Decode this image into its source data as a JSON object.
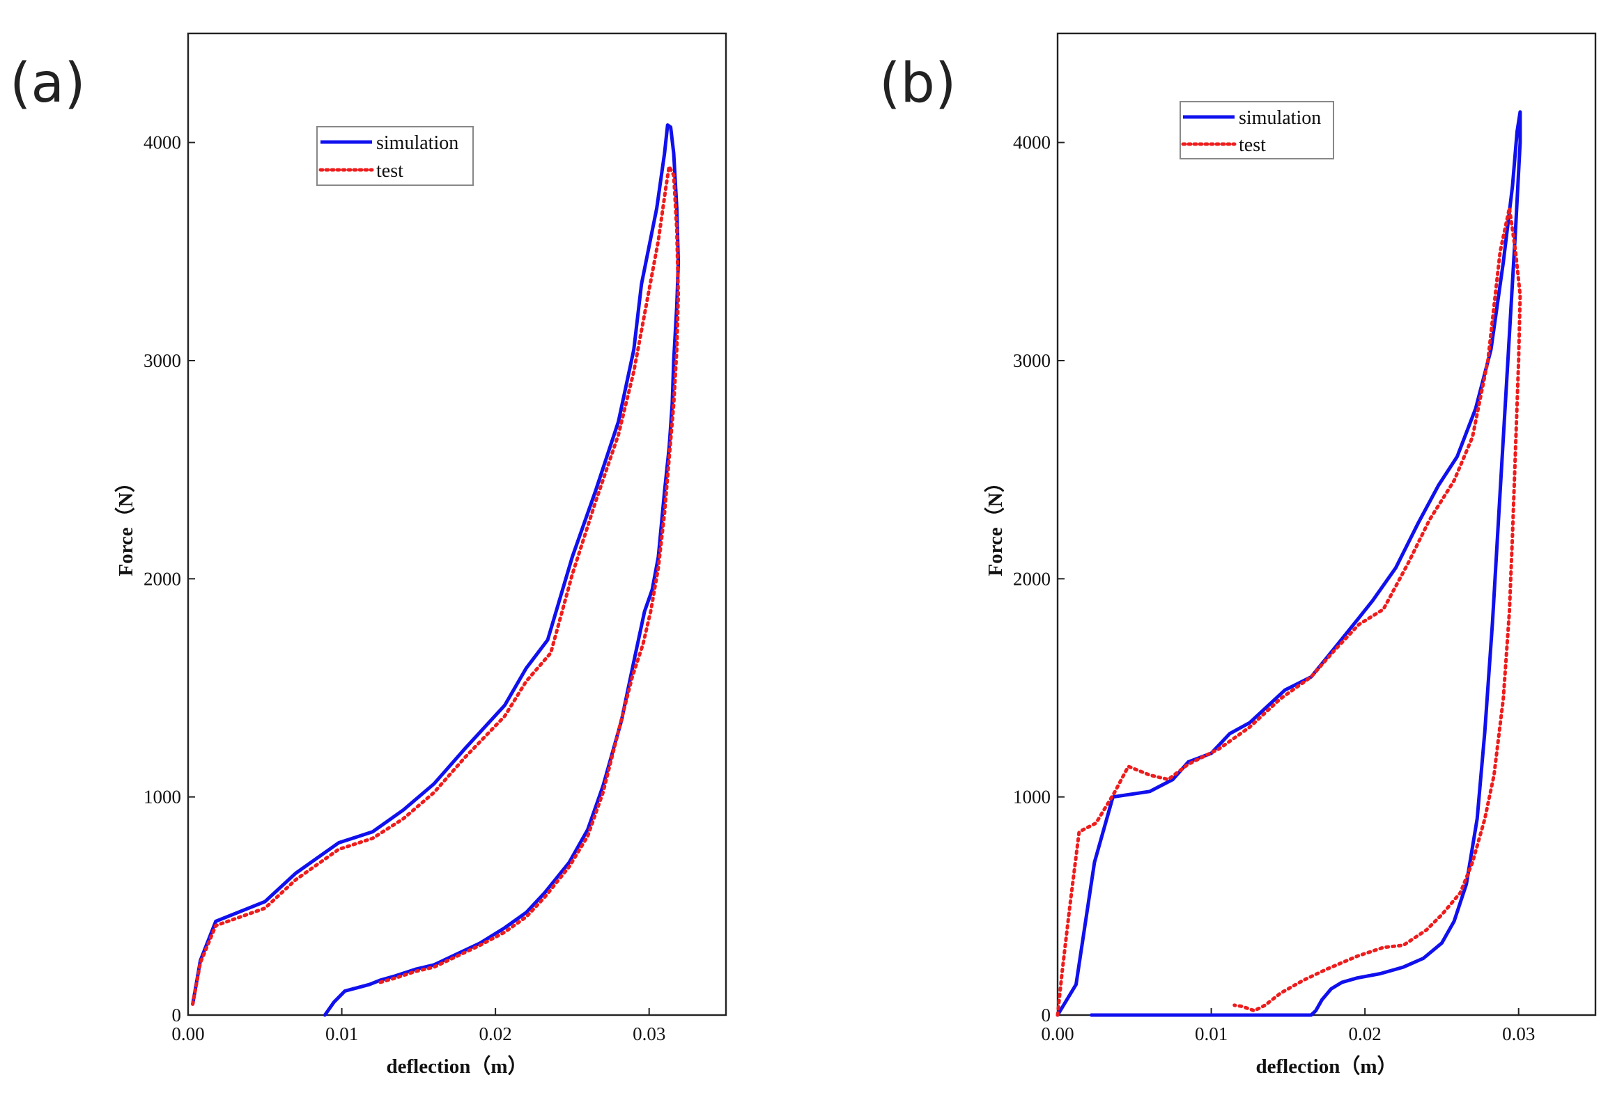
{
  "chart_data": [
    {
      "type": "line",
      "panel_label": "(a)",
      "xlabel": "deflection（m）",
      "ylabel": "Force（N）",
      "xlim": [
        0,
        0.035
      ],
      "ylim": [
        0,
        4500
      ],
      "x_ticks": [
        0,
        0.01,
        0.02,
        0.03
      ],
      "x_tick_labels": [
        "0.00",
        "0.01",
        "0.02",
        "0.03"
      ],
      "y_ticks": [
        0,
        1000,
        2000,
        3000,
        4000
      ],
      "y_tick_labels": [
        "0",
        "1000",
        "2000",
        "3000",
        "4000"
      ],
      "legend": {
        "placement": "upper-center",
        "entries": [
          "simulation",
          "test"
        ]
      },
      "series": [
        {
          "name": "simulation",
          "color": "#1010ee",
          "style": "solid",
          "points": [
            [
              0.0003,
              50
            ],
            [
              0.0008,
              250
            ],
            [
              0.0018,
              430
            ],
            [
              0.005,
              520
            ],
            [
              0.007,
              650
            ],
            [
              0.0098,
              790
            ],
            [
              0.012,
              840
            ],
            [
              0.014,
              940
            ],
            [
              0.016,
              1060
            ],
            [
              0.018,
              1220
            ],
            [
              0.0206,
              1420
            ],
            [
              0.022,
              1590
            ],
            [
              0.0234,
              1720
            ],
            [
              0.025,
              2100
            ],
            [
              0.0265,
              2400
            ],
            [
              0.028,
              2720
            ],
            [
              0.029,
              3050
            ],
            [
              0.0295,
              3350
            ],
            [
              0.0305,
              3700
            ],
            [
              0.031,
              3950
            ],
            [
              0.0312,
              4080
            ],
            [
              0.0314,
              4070
            ],
            [
              0.0316,
              3950
            ],
            [
              0.0318,
              3700
            ],
            [
              0.0319,
              3450
            ],
            [
              0.0318,
              3250
            ],
            [
              0.0316,
              3000
            ],
            [
              0.0315,
              2800
            ],
            [
              0.0313,
              2600
            ],
            [
              0.031,
              2400
            ],
            [
              0.0306,
              2100
            ],
            [
              0.0302,
              1950
            ],
            [
              0.0297,
              1850
            ],
            [
              0.029,
              1620
            ],
            [
              0.0282,
              1350
            ],
            [
              0.027,
              1050
            ],
            [
              0.026,
              850
            ],
            [
              0.0248,
              700
            ],
            [
              0.0232,
              560
            ],
            [
              0.022,
              470
            ],
            [
              0.0206,
              400
            ],
            [
              0.019,
              330
            ],
            [
              0.0175,
              280
            ],
            [
              0.016,
              230
            ],
            [
              0.0148,
              210
            ],
            [
              0.0135,
              180
            ],
            [
              0.0125,
              160
            ],
            [
              0.0118,
              140
            ],
            [
              0.011,
              125
            ],
            [
              0.0102,
              110
            ],
            [
              0.0095,
              60
            ],
            [
              0.0089,
              0
            ]
          ]
        },
        {
          "name": "test",
          "color": "#ee1c1c",
          "style": "dotted",
          "points": [
            [
              0.0003,
              50
            ],
            [
              0.0008,
              240
            ],
            [
              0.0018,
              410
            ],
            [
              0.005,
              490
            ],
            [
              0.007,
              620
            ],
            [
              0.0098,
              760
            ],
            [
              0.012,
              810
            ],
            [
              0.014,
              900
            ],
            [
              0.016,
              1020
            ],
            [
              0.018,
              1180
            ],
            [
              0.0206,
              1370
            ],
            [
              0.022,
              1530
            ],
            [
              0.0236,
              1660
            ],
            [
              0.025,
              2020
            ],
            [
              0.0265,
              2350
            ],
            [
              0.028,
              2660
            ],
            [
              0.029,
              2950
            ],
            [
              0.0298,
              3250
            ],
            [
              0.0306,
              3550
            ],
            [
              0.0311,
              3800
            ],
            [
              0.0313,
              3890
            ],
            [
              0.0316,
              3850
            ],
            [
              0.0318,
              3600
            ],
            [
              0.0319,
              3300
            ],
            [
              0.0318,
              3050
            ],
            [
              0.0316,
              2800
            ],
            [
              0.0313,
              2550
            ],
            [
              0.031,
              2300
            ],
            [
              0.0306,
              2050
            ],
            [
              0.0301,
              1850
            ],
            [
              0.0296,
              1700
            ],
            [
              0.0289,
              1550
            ],
            [
              0.028,
              1300
            ],
            [
              0.027,
              1020
            ],
            [
              0.026,
              820
            ],
            [
              0.0248,
              680
            ],
            [
              0.0232,
              540
            ],
            [
              0.022,
              450
            ],
            [
              0.0206,
              380
            ],
            [
              0.019,
              320
            ],
            [
              0.0175,
              270
            ],
            [
              0.016,
              220
            ],
            [
              0.0148,
              200
            ],
            [
              0.0135,
              170
            ],
            [
              0.0125,
              150
            ]
          ]
        }
      ]
    },
    {
      "type": "line",
      "panel_label": "(b)",
      "xlabel": "deflection（m）",
      "ylabel": "Force（N）",
      "xlim": [
        0,
        0.035
      ],
      "ylim": [
        0,
        4500
      ],
      "x_ticks": [
        0,
        0.01,
        0.02,
        0.03
      ],
      "x_tick_labels": [
        "0.00",
        "0.01",
        "0.02",
        "0.03"
      ],
      "y_ticks": [
        0,
        1000,
        2000,
        3000,
        4000
      ],
      "y_tick_labels": [
        "0",
        "1000",
        "2000",
        "3000",
        "4000"
      ],
      "legend": {
        "placement": "upper-left",
        "entries": [
          "simulation",
          "test"
        ]
      },
      "series": [
        {
          "name": "simulation",
          "color": "#1010ee",
          "style": "solid",
          "points": [
            [
              0,
              0
            ],
            [
              0.0012,
              140
            ],
            [
              0.0024,
              700
            ],
            [
              0.0036,
              1000
            ],
            [
              0.006,
              1025
            ],
            [
              0.0075,
              1080
            ],
            [
              0.0085,
              1160
            ],
            [
              0.01,
              1200
            ],
            [
              0.0112,
              1290
            ],
            [
              0.0125,
              1340
            ],
            [
              0.0148,
              1490
            ],
            [
              0.0165,
              1550
            ],
            [
              0.018,
              1680
            ],
            [
              0.0196,
              1820
            ],
            [
              0.0205,
              1900
            ],
            [
              0.022,
              2050
            ],
            [
              0.0235,
              2260
            ],
            [
              0.0248,
              2430
            ],
            [
              0.026,
              2560
            ],
            [
              0.0272,
              2780
            ],
            [
              0.0282,
              3050
            ],
            [
              0.029,
              3450
            ],
            [
              0.0296,
              3800
            ],
            [
              0.0299,
              4050
            ],
            [
              0.0301,
              4140
            ],
            [
              0.0301,
              4000
            ],
            [
              0.0298,
              3600
            ],
            [
              0.0293,
              3000
            ],
            [
              0.0288,
              2400
            ],
            [
              0.0283,
              1800
            ],
            [
              0.0278,
              1300
            ],
            [
              0.0273,
              900
            ],
            [
              0.0266,
              600
            ],
            [
              0.0258,
              430
            ],
            [
              0.025,
              330
            ],
            [
              0.0238,
              260
            ],
            [
              0.0225,
              220
            ],
            [
              0.021,
              190
            ],
            [
              0.0195,
              170
            ],
            [
              0.0185,
              150
            ],
            [
              0.0178,
              120
            ],
            [
              0.0172,
              70
            ],
            [
              0.0168,
              20
            ],
            [
              0.0165,
              0
            ],
            [
              0.0022,
              0
            ]
          ]
        },
        {
          "name": "test",
          "color": "#ee1c1c",
          "style": "dotted",
          "points": [
            [
              0,
              0
            ],
            [
              0.0003,
              200
            ],
            [
              0.0008,
              500
            ],
            [
              0.0014,
              840
            ],
            [
              0.0025,
              880
            ],
            [
              0.0037,
              1020
            ],
            [
              0.0046,
              1140
            ],
            [
              0.006,
              1100
            ],
            [
              0.0072,
              1080
            ],
            [
              0.0085,
              1150
            ],
            [
              0.0105,
              1220
            ],
            [
              0.0125,
              1320
            ],
            [
              0.0145,
              1450
            ],
            [
              0.0165,
              1550
            ],
            [
              0.018,
              1670
            ],
            [
              0.0196,
              1790
            ],
            [
              0.0212,
              1860
            ],
            [
              0.0228,
              2070
            ],
            [
              0.0242,
              2270
            ],
            [
              0.0258,
              2450
            ],
            [
              0.027,
              2650
            ],
            [
              0.028,
              3000
            ],
            [
              0.0288,
              3500
            ],
            [
              0.0294,
              3700
            ],
            [
              0.0298,
              3500
            ],
            [
              0.0301,
              3300
            ],
            [
              0.03,
              3000
            ],
            [
              0.0298,
              2600
            ],
            [
              0.0296,
              2200
            ],
            [
              0.0294,
              1850
            ],
            [
              0.029,
              1450
            ],
            [
              0.0284,
              1100
            ],
            [
              0.0278,
              900
            ],
            [
              0.027,
              700
            ],
            [
              0.0262,
              560
            ],
            [
              0.025,
              460
            ],
            [
              0.024,
              390
            ],
            [
              0.0225,
              320
            ],
            [
              0.0212,
              310
            ],
            [
              0.0195,
              270
            ],
            [
              0.0175,
              210
            ],
            [
              0.016,
              160
            ],
            [
              0.0145,
              100
            ],
            [
              0.0135,
              45
            ],
            [
              0.0128,
              20
            ],
            [
              0.012,
              40
            ],
            [
              0.0115,
              45
            ]
          ]
        }
      ]
    }
  ]
}
